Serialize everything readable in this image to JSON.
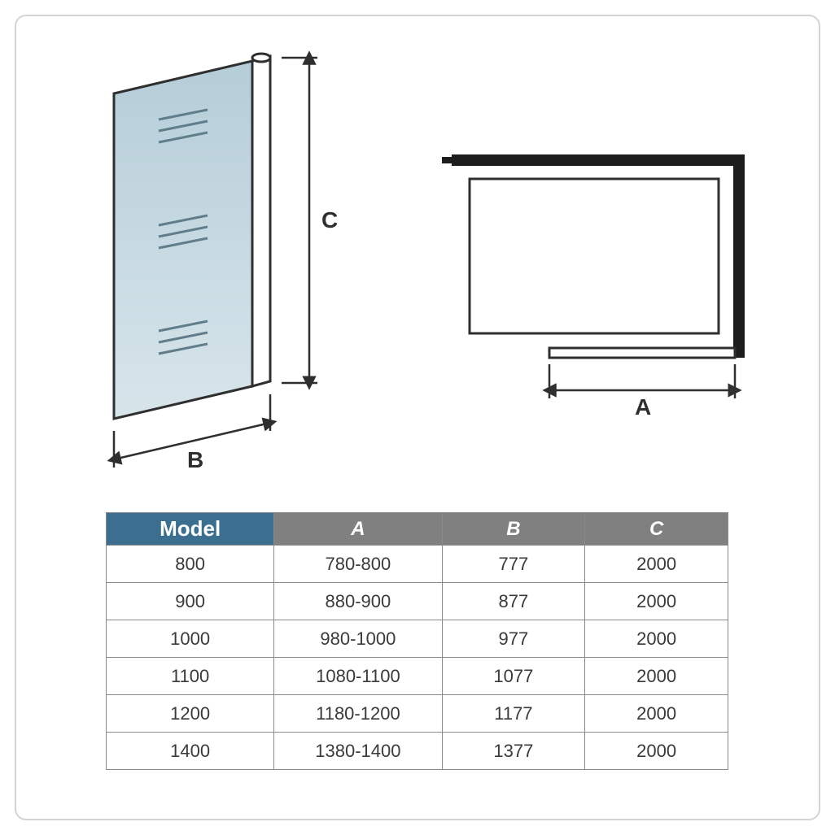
{
  "colors": {
    "frame_border": "#d4d4d4",
    "diagram_stroke": "#2f2f2f",
    "diagram_glass_fill_top": "#b5cdd8",
    "diagram_glass_fill_bottom": "#d8e5eb",
    "diagram_stroke_width": 3,
    "header_model_bg": "#3c6e8f",
    "header_other_bg": "#808080",
    "header_text": "#ffffff",
    "cell_border": "#8a8a8a",
    "cell_text": "#3a3a3a",
    "background": "#ffffff"
  },
  "diagram_labels": {
    "height": "C",
    "width": "B",
    "plan_width": "A"
  },
  "table": {
    "columns": [
      "Model",
      "A",
      "B",
      "C"
    ],
    "rows": [
      [
        "800",
        "780-800",
        "777",
        "2000"
      ],
      [
        "900",
        "880-900",
        "877",
        "2000"
      ],
      [
        "1000",
        "980-1000",
        "977",
        "2000"
      ],
      [
        "1100",
        "1080-1100",
        "1077",
        "2000"
      ],
      [
        "1200",
        "1180-1200",
        "1177",
        "2000"
      ],
      [
        "1400",
        "1380-1400",
        "1377",
        "2000"
      ]
    ]
  },
  "typography": {
    "header_fontsize": 24,
    "cell_fontsize": 22,
    "diagram_label_fontsize": 28
  }
}
